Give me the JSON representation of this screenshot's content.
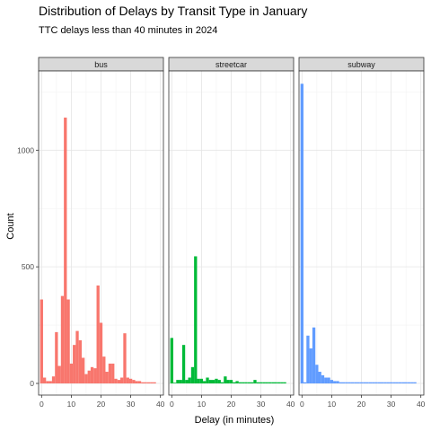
{
  "chart_data": {
    "type": "bar",
    "title": "Distribution of Delays by Transit Type in January",
    "subtitle": "TTC delays less than 40 minutes in 2024",
    "xlabel": "Delay (in minutes)",
    "ylabel": "Count",
    "xlim": [
      -1,
      41
    ],
    "ylim": [
      -50,
      1340
    ],
    "x_ticks": [
      0,
      10,
      20,
      30,
      40
    ],
    "y_ticks": [
      0,
      500,
      1000
    ],
    "bin_width": 1,
    "grid": true,
    "legend": "none",
    "panels": [
      {
        "name": "bus",
        "color": "#F8766D",
        "x": [
          0,
          1,
          2,
          3,
          4,
          5,
          6,
          7,
          8,
          9,
          10,
          11,
          12,
          13,
          14,
          15,
          16,
          17,
          18,
          19,
          20,
          21,
          22,
          23,
          24,
          25,
          26,
          27,
          28,
          29,
          30,
          31,
          32,
          33,
          34,
          35,
          36,
          37,
          38
        ],
        "values": [
          360,
          25,
          10,
          10,
          30,
          220,
          75,
          375,
          1140,
          360,
          85,
          165,
          225,
          185,
          110,
          40,
          55,
          70,
          65,
          420,
          260,
          115,
          50,
          85,
          85,
          20,
          15,
          25,
          215,
          25,
          20,
          15,
          10,
          10,
          5,
          5,
          5,
          5,
          5
        ]
      },
      {
        "name": "streetcar",
        "color": "#00BA38",
        "x": [
          0,
          1,
          2,
          3,
          4,
          5,
          6,
          7,
          8,
          9,
          10,
          11,
          12,
          13,
          14,
          15,
          16,
          17,
          18,
          19,
          20,
          21,
          22,
          23,
          24,
          25,
          26,
          27,
          28,
          29,
          30,
          31,
          32,
          33,
          34,
          35,
          36,
          37,
          38
        ],
        "values": [
          195,
          3,
          15,
          15,
          165,
          15,
          25,
          70,
          545,
          20,
          20,
          10,
          25,
          15,
          15,
          20,
          15,
          5,
          30,
          15,
          15,
          5,
          10,
          5,
          5,
          5,
          5,
          5,
          15,
          5,
          5,
          5,
          5,
          5,
          5,
          5,
          5,
          5,
          5
        ]
      },
      {
        "name": "subway",
        "color": "#619CFF",
        "x": [
          0,
          1,
          2,
          3,
          4,
          5,
          6,
          7,
          8,
          9,
          10,
          11,
          12,
          13,
          14,
          15,
          16,
          17,
          18,
          19,
          20,
          21,
          22,
          23,
          24,
          25,
          26,
          27,
          28,
          29,
          30,
          31,
          32,
          33,
          34,
          35,
          36,
          37,
          38
        ],
        "values": [
          1285,
          5,
          205,
          150,
          240,
          80,
          50,
          35,
          25,
          25,
          15,
          10,
          10,
          5,
          5,
          5,
          5,
          5,
          5,
          5,
          5,
          5,
          5,
          5,
          5,
          5,
          5,
          5,
          5,
          5,
          5,
          5,
          5,
          5,
          5,
          5,
          5,
          5,
          5
        ]
      }
    ]
  }
}
